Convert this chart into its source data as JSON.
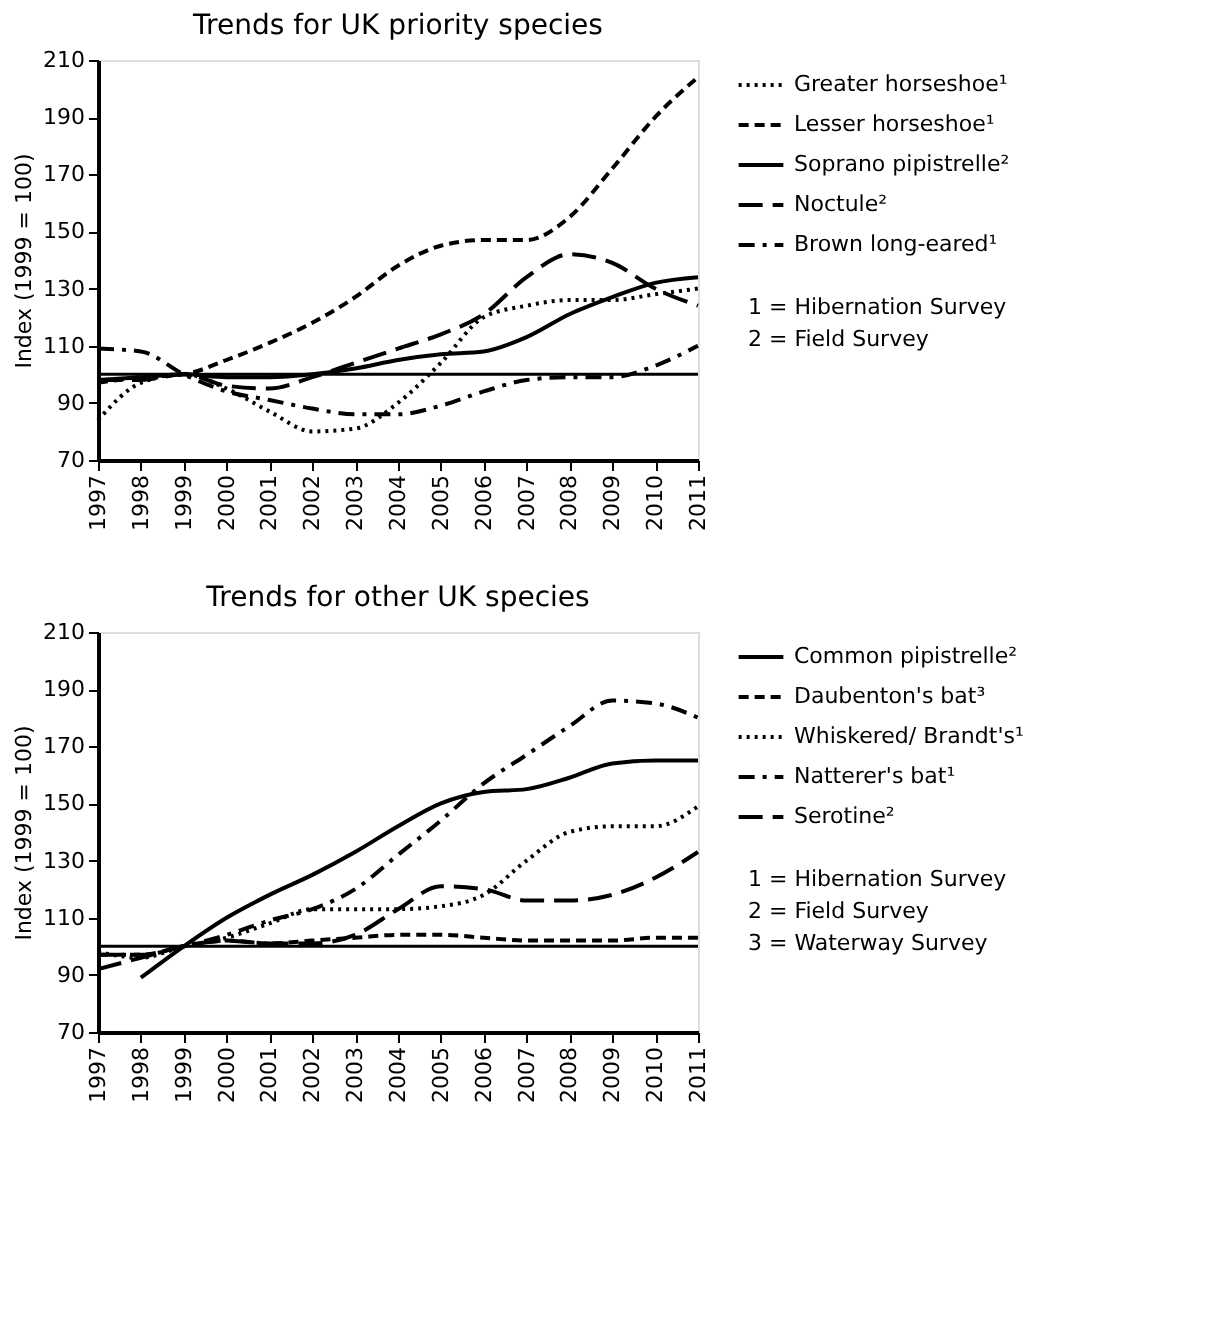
{
  "chart_data": [
    {
      "type": "line",
      "title": "Trends for UK priority species",
      "ylabel": "Index (1999 = 100)",
      "x": [
        1997,
        1998,
        1999,
        2000,
        2001,
        2002,
        2003,
        2004,
        2005,
        2006,
        2007,
        2008,
        2009,
        2010,
        2011
      ],
      "xlim": [
        1997,
        2011
      ],
      "xticks": [
        1997,
        1998,
        1999,
        2000,
        2001,
        2002,
        2003,
        2004,
        2005,
        2006,
        2007,
        2008,
        2009,
        2010,
        2011
      ],
      "ylim": [
        70,
        210
      ],
      "yticks": [
        70,
        90,
        110,
        130,
        150,
        170,
        190,
        210
      ],
      "grid": false,
      "legend": "right",
      "marker": "none",
      "series": [
        {
          "name": "Greater horseshoe¹",
          "color": "#000000",
          "line_style": "dotted",
          "values": [
            84,
            97,
            100,
            95,
            87,
            80,
            81,
            90,
            104,
            120,
            124,
            126,
            126,
            128,
            130
          ]
        },
        {
          "name": "Lesser horseshoe¹",
          "color": "#000000",
          "line_style": "dashed",
          "values": [
            97,
            99,
            100,
            105,
            111,
            118,
            127,
            138,
            145,
            147,
            147,
            155,
            172,
            190,
            204
          ]
        },
        {
          "name": "Soprano pipistrelle²",
          "color": "#000000",
          "line_style": "solid",
          "values": [
            98,
            99,
            100,
            99,
            99,
            100,
            102,
            105,
            107,
            108,
            113,
            121,
            127,
            132,
            134
          ]
        },
        {
          "name": "Noctule²",
          "color": "#000000",
          "line_style": "longdash",
          "values": [
            98,
            98,
            100,
            96,
            95,
            99,
            104,
            109,
            114,
            121,
            134,
            142,
            139,
            130,
            124
          ]
        },
        {
          "name": "Brown long-eared¹",
          "color": "#000000",
          "line_style": "dashdot",
          "values": [
            109,
            108,
            100,
            94,
            91,
            88,
            86,
            86,
            89,
            94,
            98,
            99,
            99,
            103,
            110
          ]
        }
      ],
      "ref_lines": [
        {
          "axis": "y",
          "value": 100,
          "color": "#000000",
          "line_style": "solid"
        }
      ],
      "annotations": [
        "1 = Hibernation Survey",
        "2 = Field Survey"
      ]
    },
    {
      "type": "line",
      "title": "Trends for other UK species",
      "ylabel": "Index (1999 = 100)",
      "x": [
        1997,
        1998,
        1999,
        2000,
        2001,
        2002,
        2003,
        2004,
        2005,
        2006,
        2007,
        2008,
        2009,
        2010,
        2011
      ],
      "xlim": [
        1997,
        2011
      ],
      "xticks": [
        1997,
        1998,
        1999,
        2000,
        2001,
        2002,
        2003,
        2004,
        2005,
        2006,
        2007,
        2008,
        2009,
        2010,
        2011
      ],
      "ylim": [
        70,
        210
      ],
      "yticks": [
        70,
        90,
        110,
        130,
        150,
        170,
        190,
        210
      ],
      "grid": false,
      "legend": "right",
      "marker": "none",
      "series": [
        {
          "name": "Common pipistrelle²",
          "color": "#000000",
          "line_style": "solid",
          "values": [
            null,
            89,
            100,
            110,
            118,
            125,
            133,
            142,
            150,
            154,
            155,
            159,
            164,
            165,
            165
          ]
        },
        {
          "name": "Daubenton's bat³",
          "color": "#000000",
          "line_style": "dashed",
          "values": [
            97,
            97,
            100,
            102,
            101,
            102,
            103,
            104,
            104,
            103,
            102,
            102,
            102,
            103,
            103
          ]
        },
        {
          "name": "Whiskered/ Brandt's¹",
          "color": "#000000",
          "line_style": "dotted",
          "values": [
            98,
            96,
            100,
            103,
            108,
            113,
            113,
            113,
            114,
            118,
            130,
            140,
            142,
            142,
            149
          ]
        },
        {
          "name": "Natterer's bat¹",
          "color": "#000000",
          "line_style": "dashdot",
          "values": [
            97,
            97,
            100,
            104,
            109,
            113,
            120,
            132,
            144,
            157,
            167,
            177,
            186,
            185,
            180
          ]
        },
        {
          "name": "Serotine²",
          "color": "#000000",
          "line_style": "longdash",
          "values": [
            92,
            96,
            100,
            102,
            101,
            101,
            104,
            113,
            121,
            120,
            116,
            116,
            118,
            124,
            133
          ]
        }
      ],
      "ref_lines": [
        {
          "axis": "y",
          "value": 100,
          "color": "#000000",
          "line_style": "solid"
        }
      ],
      "annotations": [
        "1 = Hibernation Survey",
        "2 = Field Survey",
        "3 = Waterway Survey"
      ]
    }
  ]
}
